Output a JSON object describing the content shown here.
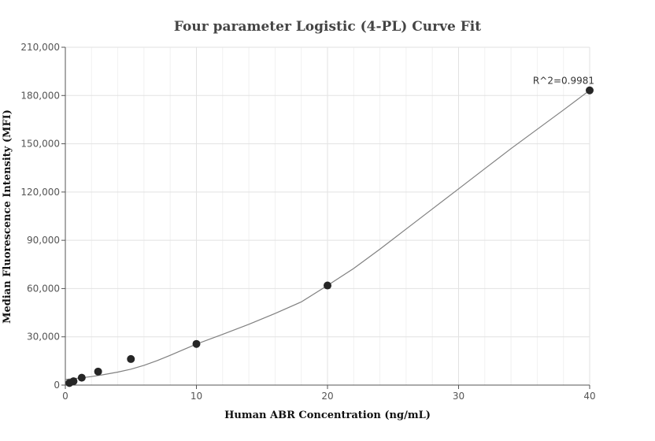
{
  "chart_data": {
    "type": "scatter",
    "title": "Four parameter Logistic (4-PL) Curve Fit",
    "xlabel": "Human ABR Concentration (ng/mL)",
    "ylabel": "Median Fluorescence Intensity (MFI)",
    "xlim": [
      0,
      40
    ],
    "ylim": [
      0,
      210000
    ],
    "xticks": [
      0,
      10,
      20,
      30,
      40
    ],
    "yticks": [
      0,
      30000,
      60000,
      90000,
      120000,
      150000,
      180000,
      210000
    ],
    "xtick_labels": [
      "0",
      "10",
      "20",
      "30",
      "40"
    ],
    "ytick_labels": [
      "0",
      "30,000",
      "60,000",
      "90,000",
      "120,000",
      "150,000",
      "180,000",
      "210,000"
    ],
    "grid": true,
    "series": [
      {
        "type": "scatter",
        "x": [
          0.313,
          0.625,
          1.25,
          2.5,
          5,
          10,
          20,
          40
        ],
        "y": [
          1300,
          2400,
          4600,
          8400,
          16200,
          25600,
          61900,
          183200
        ],
        "color": "#262626"
      },
      {
        "type": "line",
        "x": [
          0,
          1,
          2,
          3,
          4,
          5,
          6,
          7,
          8,
          9,
          10,
          12,
          14,
          16,
          18,
          20,
          22,
          24,
          26,
          28,
          30,
          32,
          34,
          36,
          38,
          40
        ],
        "y": [
          3500,
          4300,
          5300,
          6600,
          8100,
          9900,
          12300,
          15200,
          18500,
          22000,
          25500,
          31500,
          37800,
          44500,
          51700,
          61900,
          72500,
          84500,
          97000,
          109500,
          122000,
          134500,
          147000,
          159000,
          171000,
          183200
        ],
        "color": "#808080"
      }
    ],
    "annotations": [
      {
        "text": "R^2=0.9981",
        "x": 40,
        "y": 183200
      }
    ]
  }
}
